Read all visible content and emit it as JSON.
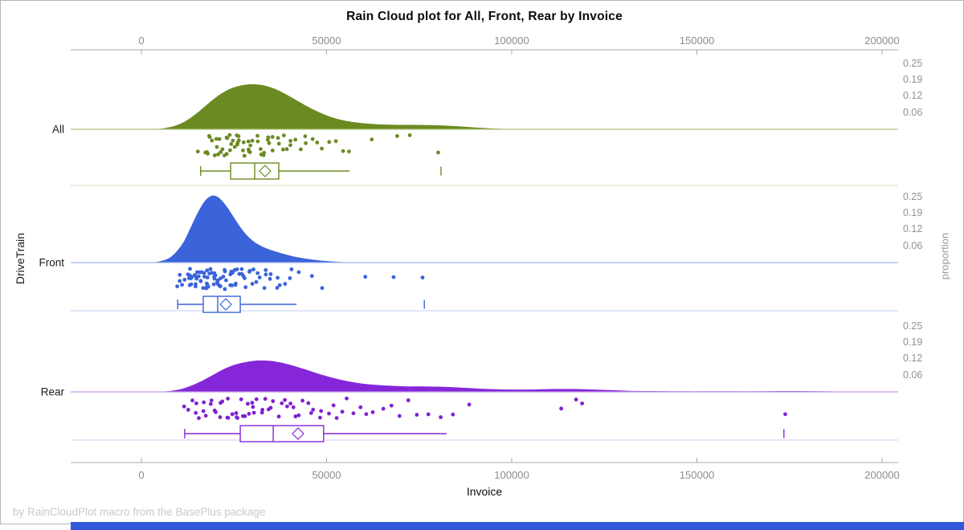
{
  "footer": "by RainCloudPlot macro from the BasePlus package",
  "chart_data": {
    "type": "raincloud",
    "title": "Rain Cloud plot for All, Front, Rear by Invoice",
    "xlabel": "Invoice",
    "ylabel_left": "DriveTrain",
    "ylabel_right": "proportion",
    "x_axis": {
      "min": 0,
      "max": 200000,
      "ticks": [
        0,
        50000,
        100000,
        150000,
        200000
      ],
      "tick_labels": [
        "0",
        "50000",
        "100000",
        "150000",
        "200000"
      ]
    },
    "proportion_ticks": {
      "labels": [
        "0.25",
        "0.19",
        "0.12",
        "0.06"
      ],
      "values": [
        0.25,
        0.1875,
        0.125,
        0.0625
      ]
    },
    "groups": [
      {
        "name": "All",
        "color": "#6b8b22",
        "dot_color": "#6b8b22",
        "baseline_color": "#afc07d",
        "separator_color": "#dde4c6",
        "density": [
          [
            3000,
            0
          ],
          [
            6000,
            0.004
          ],
          [
            9000,
            0.013
          ],
          [
            12000,
            0.032
          ],
          [
            15000,
            0.062
          ],
          [
            18000,
            0.098
          ],
          [
            21000,
            0.131
          ],
          [
            24000,
            0.155
          ],
          [
            27000,
            0.168
          ],
          [
            30000,
            0.172
          ],
          [
            33000,
            0.168
          ],
          [
            36000,
            0.155
          ],
          [
            39000,
            0.134
          ],
          [
            42000,
            0.11
          ],
          [
            45000,
            0.086
          ],
          [
            48000,
            0.065
          ],
          [
            51000,
            0.048
          ],
          [
            54000,
            0.036
          ],
          [
            57000,
            0.028
          ],
          [
            60000,
            0.023
          ],
          [
            63000,
            0.02
          ],
          [
            66000,
            0.018
          ],
          [
            70000,
            0.017
          ],
          [
            74000,
            0.017
          ],
          [
            78000,
            0.016
          ],
          [
            82000,
            0.014
          ],
          [
            86000,
            0.011
          ],
          [
            90000,
            0.007
          ],
          [
            94000,
            0.004
          ],
          [
            97000,
            0.002
          ],
          [
            100000,
            0
          ]
        ],
        "box": {
          "whisker_low": 16000,
          "q1": 24100,
          "median": 30600,
          "mean": 33400,
          "q3": 37100,
          "whisker_high": 56200,
          "outliers": [
            80900
          ]
        },
        "points": [
          15700,
          16800,
          17400,
          17900,
          18300,
          18800,
          19200,
          19600,
          20100,
          20400,
          20800,
          21200,
          21500,
          21900,
          22300,
          22600,
          23000,
          23300,
          23700,
          24000,
          24400,
          24700,
          25100,
          25400,
          25800,
          26200,
          26500,
          26900,
          27300,
          27700,
          28000,
          28400,
          28800,
          29200,
          29600,
          30000,
          30400,
          30900,
          31300,
          31800,
          32200,
          32700,
          33100,
          33600,
          34100,
          34700,
          35200,
          35800,
          36400,
          37000,
          37700,
          38400,
          39100,
          39900,
          40700,
          41600,
          42600,
          43700,
          44900,
          46200,
          47600,
          49100,
          50800,
          52700,
          55000,
          56500,
          62000,
          69000,
          72500,
          80700
        ]
      },
      {
        "name": "Front",
        "color": "#3b63da",
        "dot_color": "#3b63da",
        "baseline_color": "#a3b9ee",
        "separator_color": "#cdd9f5",
        "density": [
          [
            2000,
            0
          ],
          [
            5000,
            0.005
          ],
          [
            8000,
            0.022
          ],
          [
            11000,
            0.07
          ],
          [
            13000,
            0.125
          ],
          [
            15000,
            0.185
          ],
          [
            17000,
            0.233
          ],
          [
            18500,
            0.252
          ],
          [
            19500,
            0.256
          ],
          [
            21000,
            0.247
          ],
          [
            23000,
            0.215
          ],
          [
            25000,
            0.172
          ],
          [
            27000,
            0.13
          ],
          [
            29000,
            0.097
          ],
          [
            31000,
            0.074
          ],
          [
            33000,
            0.059
          ],
          [
            35000,
            0.048
          ],
          [
            38000,
            0.035
          ],
          [
            41000,
            0.024
          ],
          [
            44000,
            0.016
          ],
          [
            47000,
            0.01
          ],
          [
            50000,
            0.006
          ],
          [
            53000,
            0.003
          ],
          [
            56000,
            0.001
          ],
          [
            58000,
            0
          ]
        ],
        "box": {
          "whisker_low": 9800,
          "q1": 16700,
          "median": 20600,
          "mean": 22800,
          "q3": 26700,
          "whisker_high": 41900,
          "outliers": [
            76400
          ]
        },
        "points": [
          9800,
          10300,
          10800,
          11200,
          11600,
          12000,
          12300,
          12600,
          12900,
          13200,
          13500,
          13700,
          14000,
          14200,
          14500,
          14700,
          15000,
          15200,
          15400,
          15600,
          15800,
          16000,
          16200,
          16400,
          16600,
          16800,
          17000,
          17200,
          17400,
          17600,
          17800,
          18000,
          18200,
          18400,
          18600,
          18800,
          19000,
          19200,
          19400,
          19600,
          19800,
          20000,
          20200,
          20400,
          20600,
          20800,
          21000,
          21300,
          21600,
          21900,
          22200,
          22500,
          22800,
          23100,
          23400,
          23700,
          24000,
          24300,
          24600,
          24900,
          25200,
          25500,
          25900,
          26300,
          26700,
          27100,
          27500,
          27900,
          28300,
          28800,
          29300,
          29800,
          30300,
          30800,
          31400,
          32000,
          32600,
          33200,
          33900,
          34600,
          35300,
          36100,
          36900,
          37800,
          38700,
          39700,
          40800,
          42000,
          46200,
          48400,
          60100,
          68600,
          76400
        ]
      },
      {
        "name": "Rear",
        "color": "#8527d8",
        "dot_color": "#7f22cf",
        "baseline_color": "#c49ae6",
        "separator_color": "#e3d0f4",
        "density": [
          [
            5000,
            0
          ],
          [
            8000,
            0.004
          ],
          [
            11000,
            0.012
          ],
          [
            14000,
            0.027
          ],
          [
            17000,
            0.047
          ],
          [
            20000,
            0.07
          ],
          [
            23000,
            0.092
          ],
          [
            26000,
            0.107
          ],
          [
            29000,
            0.116
          ],
          [
            32000,
            0.12
          ],
          [
            35000,
            0.118
          ],
          [
            38000,
            0.111
          ],
          [
            41000,
            0.1
          ],
          [
            44000,
            0.087
          ],
          [
            47000,
            0.073
          ],
          [
            50000,
            0.06
          ],
          [
            53000,
            0.049
          ],
          [
            56000,
            0.04
          ],
          [
            60000,
            0.031
          ],
          [
            64000,
            0.026
          ],
          [
            68000,
            0.023
          ],
          [
            72000,
            0.021
          ],
          [
            76000,
            0.021
          ],
          [
            80000,
            0.02
          ],
          [
            84000,
            0.018
          ],
          [
            88000,
            0.015
          ],
          [
            92000,
            0.012
          ],
          [
            96000,
            0.01
          ],
          [
            100000,
            0.009
          ],
          [
            104000,
            0.009
          ],
          [
            108000,
            0.01
          ],
          [
            112000,
            0.011
          ],
          [
            116000,
            0.011
          ],
          [
            120000,
            0.01
          ],
          [
            124000,
            0.008
          ],
          [
            128000,
            0.006
          ],
          [
            132000,
            0.004
          ],
          [
            138000,
            0.003
          ],
          [
            146000,
            0.002
          ],
          [
            156000,
            0.002
          ],
          [
            166000,
            0.002
          ],
          [
            172000,
            0.003
          ],
          [
            178000,
            0.003
          ],
          [
            184000,
            0.002
          ],
          [
            192000,
            0.001
          ],
          [
            198000,
            0.0005
          ],
          [
            200000,
            0
          ]
        ],
        "box": {
          "whisker_low": 11700,
          "q1": 26700,
          "median": 35600,
          "mean": 42300,
          "q3": 49200,
          "whisker_high": 82400,
          "outliers": [
            173500
          ]
        },
        "points": [
          11300,
          12500,
          13400,
          14200,
          15000,
          15700,
          16400,
          17100,
          17800,
          18400,
          19000,
          19600,
          20200,
          20800,
          21400,
          22000,
          22600,
          23200,
          23800,
          24400,
          25000,
          25600,
          26200,
          26800,
          27400,
          28000,
          28600,
          29200,
          29800,
          30400,
          31000,
          31700,
          32400,
          33100,
          33800,
          34500,
          35200,
          35900,
          36600,
          37400,
          38200,
          39000,
          39800,
          40700,
          41600,
          42500,
          43500,
          44500,
          45500,
          46600,
          47700,
          48900,
          50100,
          51400,
          52700,
          54100,
          55600,
          57200,
          58900,
          60700,
          62600,
          64700,
          66900,
          69300,
          71900,
          74700,
          77700,
          81000,
          84600,
          88500,
          112800,
          118000,
          119600,
          173500
        ]
      }
    ]
  }
}
